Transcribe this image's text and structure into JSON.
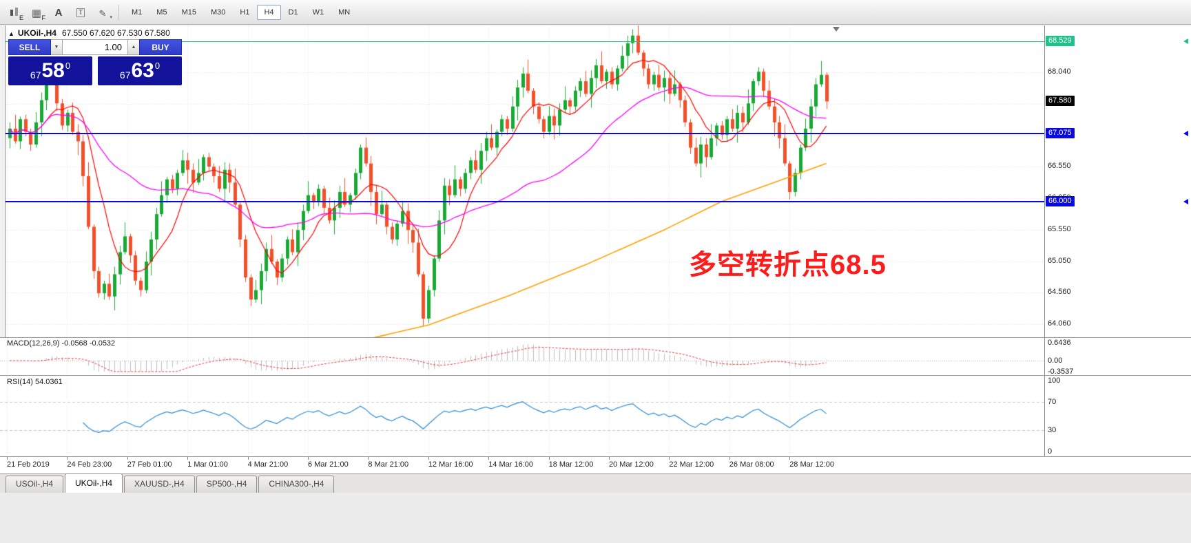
{
  "toolbar": {
    "icons": [
      {
        "name": "candlestick-chart-icon",
        "letter": "E"
      },
      {
        "name": "grid-icon",
        "letter": "F"
      },
      {
        "name": "font-icon",
        "letter": "A"
      },
      {
        "name": "text-box-icon",
        "letter": "T"
      },
      {
        "name": "line-tools-icon",
        "letter": ""
      }
    ],
    "timeframes": [
      "M1",
      "M5",
      "M15",
      "M30",
      "H1",
      "H4",
      "D1",
      "W1",
      "MN"
    ],
    "active_timeframe": "H4"
  },
  "window": {
    "symbol_title": "UKOil-,H4",
    "ohlc": "67.550 67.620 67.530 67.580",
    "collapse_icon": "▲"
  },
  "one_click": {
    "sell_label": "SELL",
    "buy_label": "BUY",
    "volume": "1.00",
    "down_icon": "▼",
    "up_icon": "▲",
    "sell_price": {
      "prefix": "67",
      "big": "58",
      "sup": "0"
    },
    "buy_price": {
      "prefix": "67",
      "big": "63",
      "sup": "0"
    }
  },
  "annotation": {
    "text": "多空转折点68.5"
  },
  "price_axis": {
    "current": {
      "label": "67.580",
      "price": 67.58,
      "bg": "#000000"
    },
    "hlines": [
      {
        "label": "68.529",
        "price": 68.529,
        "color": "#1ec189",
        "thickness": 1
      },
      {
        "label": "67.075",
        "price": 67.075,
        "color": "#0a0ae0",
        "thickness": 2
      },
      {
        "label": "66.000",
        "price": 66.0,
        "color": "#0a0ae0",
        "thickness": 2
      }
    ],
    "labels": [
      {
        "label": "68.040",
        "price": 68.04
      },
      {
        "label": "66.550",
        "price": 66.55
      },
      {
        "label": "66.050",
        "price": 66.05
      },
      {
        "label": "65.550",
        "price": 65.55
      },
      {
        "label": "65.050",
        "price": 65.05
      },
      {
        "label": "64.560",
        "price": 64.56
      },
      {
        "label": "64.060",
        "price": 64.06
      }
    ]
  },
  "time_axis": {
    "labels": [
      "21 Feb 2019",
      "24 Feb 23:00",
      "27 Feb 01:00",
      "1 Mar 01:00",
      "4 Mar 21:00",
      "6 Mar 21:00",
      "8 Mar 21:00",
      "12 Mar 16:00",
      "14 Mar 16:00",
      "18 Mar 12:00",
      "20 Mar 12:00",
      "22 Mar 12:00",
      "26 Mar 08:00",
      "28 Mar 12:00"
    ]
  },
  "macd": {
    "label": "MACD(12,26,9)",
    "value": "-0.0568",
    "signal_value": "-0.0532",
    "scale_max": "0.6436",
    "scale_zero": "0.00",
    "scale_min": "-0.3537"
  },
  "rsi": {
    "label": "RSI(14)",
    "value": "54.0361",
    "scale": [
      "100",
      "70",
      "30",
      "0"
    ]
  },
  "tabs": [
    {
      "label": "USOil-,H4",
      "active": false
    },
    {
      "label": "UKOil-,H4",
      "active": true
    },
    {
      "label": "XAUUSD-,H4",
      "active": false
    },
    {
      "label": "SP500-,H4",
      "active": false
    },
    {
      "label": "CHINA300-,H4",
      "active": false
    }
  ],
  "chart_data": {
    "type": "candlestick",
    "symbol": "UKOil-",
    "timeframe": "H4",
    "title_ohlc": {
      "open": 67.55,
      "high": 67.62,
      "low": 67.53,
      "close": 67.58
    },
    "open_first": 67.0,
    "closes": [
      67.15,
      66.95,
      67.3,
      67.1,
      66.9,
      67.25,
      67.6,
      67.95,
      68.02,
      67.55,
      67.2,
      67.4,
      67.1,
      66.95,
      66.4,
      65.6,
      64.9,
      64.55,
      64.7,
      64.5,
      64.85,
      65.2,
      65.45,
      65.15,
      64.75,
      64.6,
      65.05,
      65.4,
      65.8,
      66.1,
      66.35,
      66.2,
      66.45,
      66.65,
      66.5,
      66.3,
      66.45,
      66.7,
      66.55,
      66.4,
      66.2,
      66.5,
      66.3,
      65.95,
      65.4,
      64.8,
      64.45,
      64.6,
      64.9,
      65.25,
      65.05,
      64.8,
      65.1,
      65.4,
      65.2,
      65.55,
      65.85,
      66.1,
      66.0,
      66.2,
      65.9,
      65.7,
      65.9,
      66.15,
      65.95,
      66.1,
      66.45,
      66.85,
      66.6,
      66.15,
      65.8,
      65.95,
      65.6,
      65.4,
      65.65,
      65.85,
      65.55,
      65.35,
      64.85,
      64.15,
      64.6,
      65.1,
      65.7,
      66.25,
      66.1,
      66.35,
      66.2,
      66.45,
      66.65,
      66.5,
      66.8,
      67.0,
      66.85,
      67.1,
      67.3,
      67.15,
      67.5,
      67.8,
      68.02,
      67.75,
      67.5,
      67.3,
      67.1,
      67.35,
      67.2,
      67.45,
      67.6,
      67.5,
      67.75,
      67.9,
      67.7,
      67.95,
      68.15,
      67.9,
      68.05,
      67.85,
      68.1,
      68.3,
      68.5,
      68.62,
      68.35,
      68.1,
      67.85,
      68.0,
      67.8,
      67.95,
      67.7,
      67.85,
      67.6,
      67.25,
      66.85,
      66.6,
      66.9,
      66.7,
      67.0,
      67.2,
      67.05,
      67.3,
      67.15,
      67.4,
      67.25,
      67.55,
      67.9,
      68.05,
      67.75,
      67.5,
      67.25,
      67.0,
      66.6,
      66.15,
      66.45,
      66.85,
      67.15,
      67.5,
      67.85,
      68.0,
      67.58
    ],
    "ma_fast_period": 8,
    "ma_mid_period": 34,
    "ma_long_anchors": [
      [
        66,
        63.78
      ],
      [
        80,
        64.05
      ],
      [
        95,
        64.5
      ],
      [
        110,
        65.0
      ],
      [
        125,
        65.55
      ],
      [
        136,
        66.0
      ],
      [
        146,
        66.3
      ],
      [
        156,
        66.6
      ]
    ],
    "macd_scale": {
      "max": 0.6436,
      "min": -0.3537
    },
    "rsi_levels": [
      70,
      30
    ],
    "colors": {
      "up": "#18a834",
      "down": "#f2502a",
      "ma_fast": "#ff0000",
      "ma_mid": "#ff00ff",
      "ma_long": "#ffa000",
      "macd_hist": "#bdbdbd",
      "macd_signal": "#e23b3b",
      "rsi_line": "#2a8ad4",
      "grid": "#e3e3e3",
      "level_dash": "#c8c8c8",
      "annotation": "#fb1c1c",
      "hline_green": "#1ec189",
      "hline_blue": "#0a0ae0"
    }
  }
}
